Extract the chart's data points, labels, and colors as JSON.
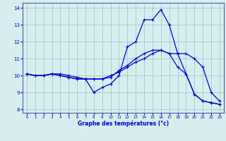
{
  "xlabel": "Graphe des températures (°c)",
  "xlim": [
    -0.5,
    23.5
  ],
  "ylim": [
    7.8,
    14.3
  ],
  "yticks": [
    8,
    9,
    10,
    11,
    12,
    13,
    14
  ],
  "xticks": [
    0,
    1,
    2,
    3,
    4,
    5,
    6,
    7,
    8,
    9,
    10,
    11,
    12,
    13,
    14,
    15,
    16,
    17,
    18,
    19,
    20,
    21,
    22,
    23
  ],
  "background_color": "#d6eef0",
  "grid_color": "#a8cdd0",
  "line_color": "#0000cc",
  "spine_color": "#5555aa",
  "line1_x": [
    0,
    1,
    2,
    3,
    4,
    5,
    6,
    7,
    8,
    9,
    10,
    11,
    12,
    13,
    14,
    15,
    16,
    17,
    18,
    19,
    20,
    21,
    22,
    23
  ],
  "line1_y": [
    10.1,
    10.0,
    10.0,
    10.1,
    10.1,
    10.0,
    9.9,
    9.8,
    9.8,
    9.8,
    9.9,
    10.3,
    10.6,
    11.0,
    11.3,
    11.5,
    11.5,
    11.3,
    11.3,
    11.3,
    11.0,
    10.5,
    9.0,
    8.5
  ],
  "line2_x": [
    0,
    1,
    2,
    3,
    4,
    5,
    6,
    7,
    8,
    9,
    10,
    11,
    12,
    13,
    14,
    15,
    16,
    17,
    18,
    19,
    20,
    21,
    22,
    23
  ],
  "line2_y": [
    10.1,
    10.0,
    10.0,
    10.1,
    10.0,
    9.9,
    9.8,
    9.8,
    9.0,
    9.3,
    9.5,
    10.0,
    11.7,
    12.0,
    13.3,
    13.3,
    13.9,
    13.0,
    11.3,
    10.1,
    8.9,
    8.5,
    8.4,
    8.3
  ],
  "line3_x": [
    0,
    1,
    2,
    3,
    4,
    5,
    6,
    7,
    8,
    9,
    10,
    11,
    12,
    13,
    14,
    15,
    16,
    17,
    18,
    19,
    20,
    21,
    22,
    23
  ],
  "line3_y": [
    10.1,
    10.0,
    10.0,
    10.1,
    10.0,
    9.9,
    9.8,
    9.8,
    9.8,
    9.8,
    10.0,
    10.2,
    10.5,
    10.8,
    11.0,
    11.3,
    11.5,
    11.3,
    10.5,
    10.1,
    8.9,
    8.5,
    8.4,
    8.3
  ]
}
